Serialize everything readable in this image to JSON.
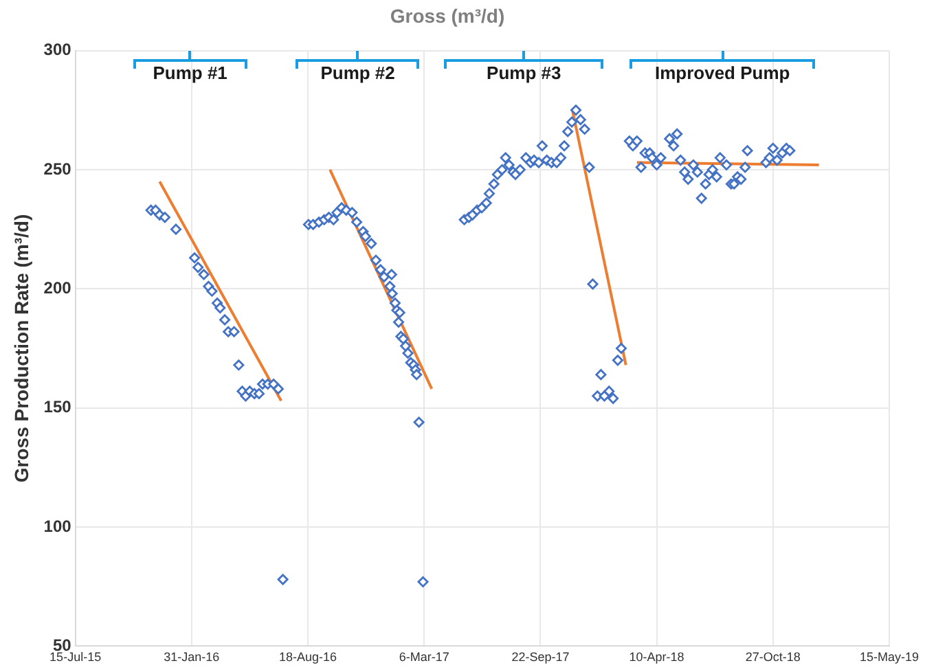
{
  "chart_data": {
    "type": "scatter",
    "title": "Gross (m³/d)",
    "ylabel": "Gross Production Rate (m³/d)",
    "xlim": [
      "2015-07-15",
      "2019-05-15"
    ],
    "xticks": [
      {
        "value": "2015-07-15",
        "label": "15-Jul-15"
      },
      {
        "value": "2016-01-31",
        "label": "31-Jan-16"
      },
      {
        "value": "2016-08-18",
        "label": "18-Aug-16"
      },
      {
        "value": "2017-03-06",
        "label": "6-Mar-17"
      },
      {
        "value": "2017-09-22",
        "label": "22-Sep-17"
      },
      {
        "value": "2018-04-10",
        "label": "10-Apr-18"
      },
      {
        "value": "2018-10-27",
        "label": "27-Oct-18"
      },
      {
        "value": "2019-05-15",
        "label": "15-May-19"
      }
    ],
    "ylim": [
      50,
      300
    ],
    "yticks": [
      50,
      100,
      150,
      200,
      250,
      300
    ],
    "grid": true,
    "legend": false,
    "annotations": [
      "Pump #1",
      "Pump #2",
      "Pump #3",
      "Improved Pump"
    ],
    "series": [
      {
        "color": "#4472c4",
        "marker": "diamond",
        "x": [
          "2015-11-22",
          "2015-11-30",
          "2015-12-07",
          "2015-12-16",
          "2016-01-04",
          "2016-02-05",
          "2016-02-11",
          "2016-02-21",
          "2016-02-29",
          "2016-03-06",
          "2016-03-15",
          "2016-03-20",
          "2016-03-28",
          "2016-04-03",
          "2016-04-13",
          "2016-04-21",
          "2016-04-27",
          "2016-05-03",
          "2016-05-10",
          "2016-05-18",
          "2016-05-26",
          "2016-06-01",
          "2016-06-10",
          "2016-06-20",
          "2016-06-28",
          "2016-07-06",
          "2016-08-19",
          "2016-08-27",
          "2016-09-06",
          "2016-09-15",
          "2016-09-23",
          "2016-10-01",
          "2016-10-07",
          "2016-10-15",
          "2016-10-23",
          "2016-11-02",
          "2016-11-10",
          "2016-11-21",
          "2016-11-25",
          "2016-12-05",
          "2016-12-13",
          "2016-12-21",
          "2016-12-27",
          "2017-01-06",
          "2017-01-09",
          "2017-01-10",
          "2017-01-15",
          "2017-01-18",
          "2017-01-21",
          "2017-01-23",
          "2017-01-25",
          "2017-01-29",
          "2017-02-02",
          "2017-02-06",
          "2017-02-11",
          "2017-02-16",
          "2017-02-19",
          "2017-02-21",
          "2017-02-25",
          "2017-03-04",
          "2017-05-14",
          "2017-05-22",
          "2017-05-28",
          "2017-06-05",
          "2017-06-13",
          "2017-06-21",
          "2017-06-26",
          "2017-07-04",
          "2017-07-10",
          "2017-07-18",
          "2017-07-24",
          "2017-07-30",
          "2017-08-06",
          "2017-08-10",
          "2017-08-18",
          "2017-08-28",
          "2017-09-05",
          "2017-09-11",
          "2017-09-19",
          "2017-09-25",
          "2017-10-03",
          "2017-10-11",
          "2017-10-20",
          "2017-10-27",
          "2017-11-02",
          "2017-11-08",
          "2017-11-15",
          "2017-11-22",
          "2017-11-30",
          "2017-12-07",
          "2017-12-15",
          "2017-12-21",
          "2017-12-29",
          "2018-01-04",
          "2018-01-10",
          "2018-01-18",
          "2018-01-25",
          "2018-02-02",
          "2018-02-08",
          "2018-02-22",
          "2018-02-28",
          "2018-03-07",
          "2018-03-14",
          "2018-03-21",
          "2018-03-29",
          "2018-04-02",
          "2018-04-10",
          "2018-04-17",
          "2018-05-02",
          "2018-05-09",
          "2018-05-15",
          "2018-05-21",
          "2018-05-28",
          "2018-06-03",
          "2018-06-12",
          "2018-06-19",
          "2018-06-26",
          "2018-07-03",
          "2018-07-09",
          "2018-07-15",
          "2018-07-22",
          "2018-07-28",
          "2018-08-08",
          "2018-08-16",
          "2018-08-21",
          "2018-08-27",
          "2018-09-02",
          "2018-09-09",
          "2018-09-13",
          "2018-10-15",
          "2018-10-21",
          "2018-10-27",
          "2018-11-03",
          "2018-11-12",
          "2018-11-19",
          "2018-11-25"
        ],
        "values": [
          233,
          233,
          231,
          230,
          225,
          213,
          209,
          206,
          201,
          199,
          194,
          192,
          187,
          182,
          182,
          168,
          157,
          155,
          157,
          156,
          156,
          160,
          160,
          160,
          158,
          78,
          227,
          227,
          228,
          229,
          230,
          229,
          232,
          234,
          233,
          232,
          228,
          224,
          222,
          219,
          212,
          208,
          205,
          201,
          206,
          198,
          194,
          191,
          186,
          190,
          180,
          179,
          176,
          173,
          169,
          168,
          166,
          164,
          144,
          77,
          229,
          230,
          231,
          233,
          234,
          236,
          240,
          244,
          248,
          250,
          255,
          252,
          249,
          248,
          250,
          255,
          253,
          254,
          253,
          260,
          254,
          253,
          253,
          255,
          260,
          266,
          270,
          275,
          271,
          267,
          251,
          202,
          155,
          164,
          155,
          157,
          154,
          170,
          175,
          262,
          260,
          262,
          251,
          257,
          257,
          255,
          252,
          255,
          263,
          260,
          265,
          254,
          249,
          246,
          252,
          249,
          238,
          244,
          248,
          250,
          247,
          255,
          252,
          244,
          244,
          247,
          246,
          251,
          258,
          253,
          255,
          259,
          254,
          257,
          259,
          258
        ]
      },
      {
        "type": "line",
        "color": "#ed7d31",
        "x": [
          "2015-12-07",
          "2016-07-03"
        ],
        "values": [
          245,
          153
        ]
      },
      {
        "type": "line",
        "color": "#ed7d31",
        "x": [
          "2016-09-25",
          "2017-03-19"
        ],
        "values": [
          250,
          158
        ]
      },
      {
        "type": "line",
        "color": "#ed7d31",
        "x": [
          "2017-11-16",
          "2018-02-16"
        ],
        "values": [
          275,
          168
        ]
      },
      {
        "type": "line",
        "color": "#ed7d31",
        "x": [
          "2018-03-07",
          "2019-01-14"
        ],
        "values": [
          253,
          252
        ]
      }
    ]
  }
}
